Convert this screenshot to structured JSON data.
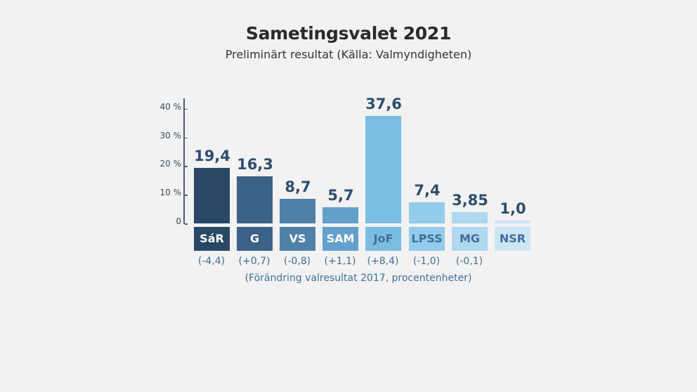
{
  "header": {
    "title": "Sametingsvalet 2021",
    "subtitle": "Preliminärt resultat  (Källa: Valmyndigheten)"
  },
  "axis": {
    "ticks": [
      {
        "label": "40 %",
        "value": 40
      },
      {
        "label": "30 %",
        "value": 30
      },
      {
        "label": "20 %",
        "value": 20
      },
      {
        "label": "10 %",
        "value": 10
      },
      {
        "label": "0",
        "value": 0
      }
    ]
  },
  "bars": [
    {
      "party": "SáR",
      "value_label": "19,4",
      "change": "(-4,4)",
      "color": "#284866",
      "text_color": "#ffffff"
    },
    {
      "party": "G",
      "value_label": "16,3",
      "change": "(+0,7)",
      "color": "#3a6286",
      "text_color": "#ffffff"
    },
    {
      "party": "VS",
      "value_label": "8,7",
      "change": "(-0,8)",
      "color": "#4f81a8",
      "text_color": "#ffffff"
    },
    {
      "party": "SAM",
      "value_label": "5,7",
      "change": "(+1,1)",
      "color": "#64a0cc",
      "text_color": "#ffffff"
    },
    {
      "party": "JoF",
      "value_label": "37,6",
      "change": "(+8,4)",
      "color": "#7bbde2",
      "text_color": "#3f6f9a"
    },
    {
      "party": "LPSS",
      "value_label": "7,4",
      "change": "(-1,0)",
      "color": "#93cbea",
      "text_color": "#3f6f9a"
    },
    {
      "party": "MG",
      "value_label": "3,85",
      "change": "(-0,1)",
      "color": "#b0d8f0",
      "text_color": "#3f6f9a"
    },
    {
      "party": "NSR",
      "value_label": "1,0",
      "change": "",
      "color": "#cde6f5",
      "text_color": "#3f6f9a"
    }
  ],
  "footnote": "(Förändring valresultat 2017, procentenheter)",
  "chart_data": {
    "type": "bar",
    "title": "Sametingsvalet 2021",
    "subtitle": "Preliminärt resultat  (Källa: Valmyndigheten)",
    "categories": [
      "SáR",
      "G",
      "VS",
      "SAM",
      "JoF",
      "LPSS",
      "MG",
      "NSR"
    ],
    "values": [
      19.4,
      16.3,
      8.7,
      5.7,
      37.6,
      7.4,
      3.85,
      1.0
    ],
    "change_from_2017": [
      -4.4,
      0.7,
      -0.8,
      1.1,
      8.4,
      -1.0,
      -0.1,
      null
    ],
    "xlabel": "",
    "ylabel": "%",
    "ylim": [
      0,
      40
    ],
    "yticks": [
      "0",
      "10 %",
      "20 %",
      "30 %",
      "40 %"
    ],
    "grid": false,
    "annotation": "(Förändring valresultat 2017, procentenheter)"
  }
}
